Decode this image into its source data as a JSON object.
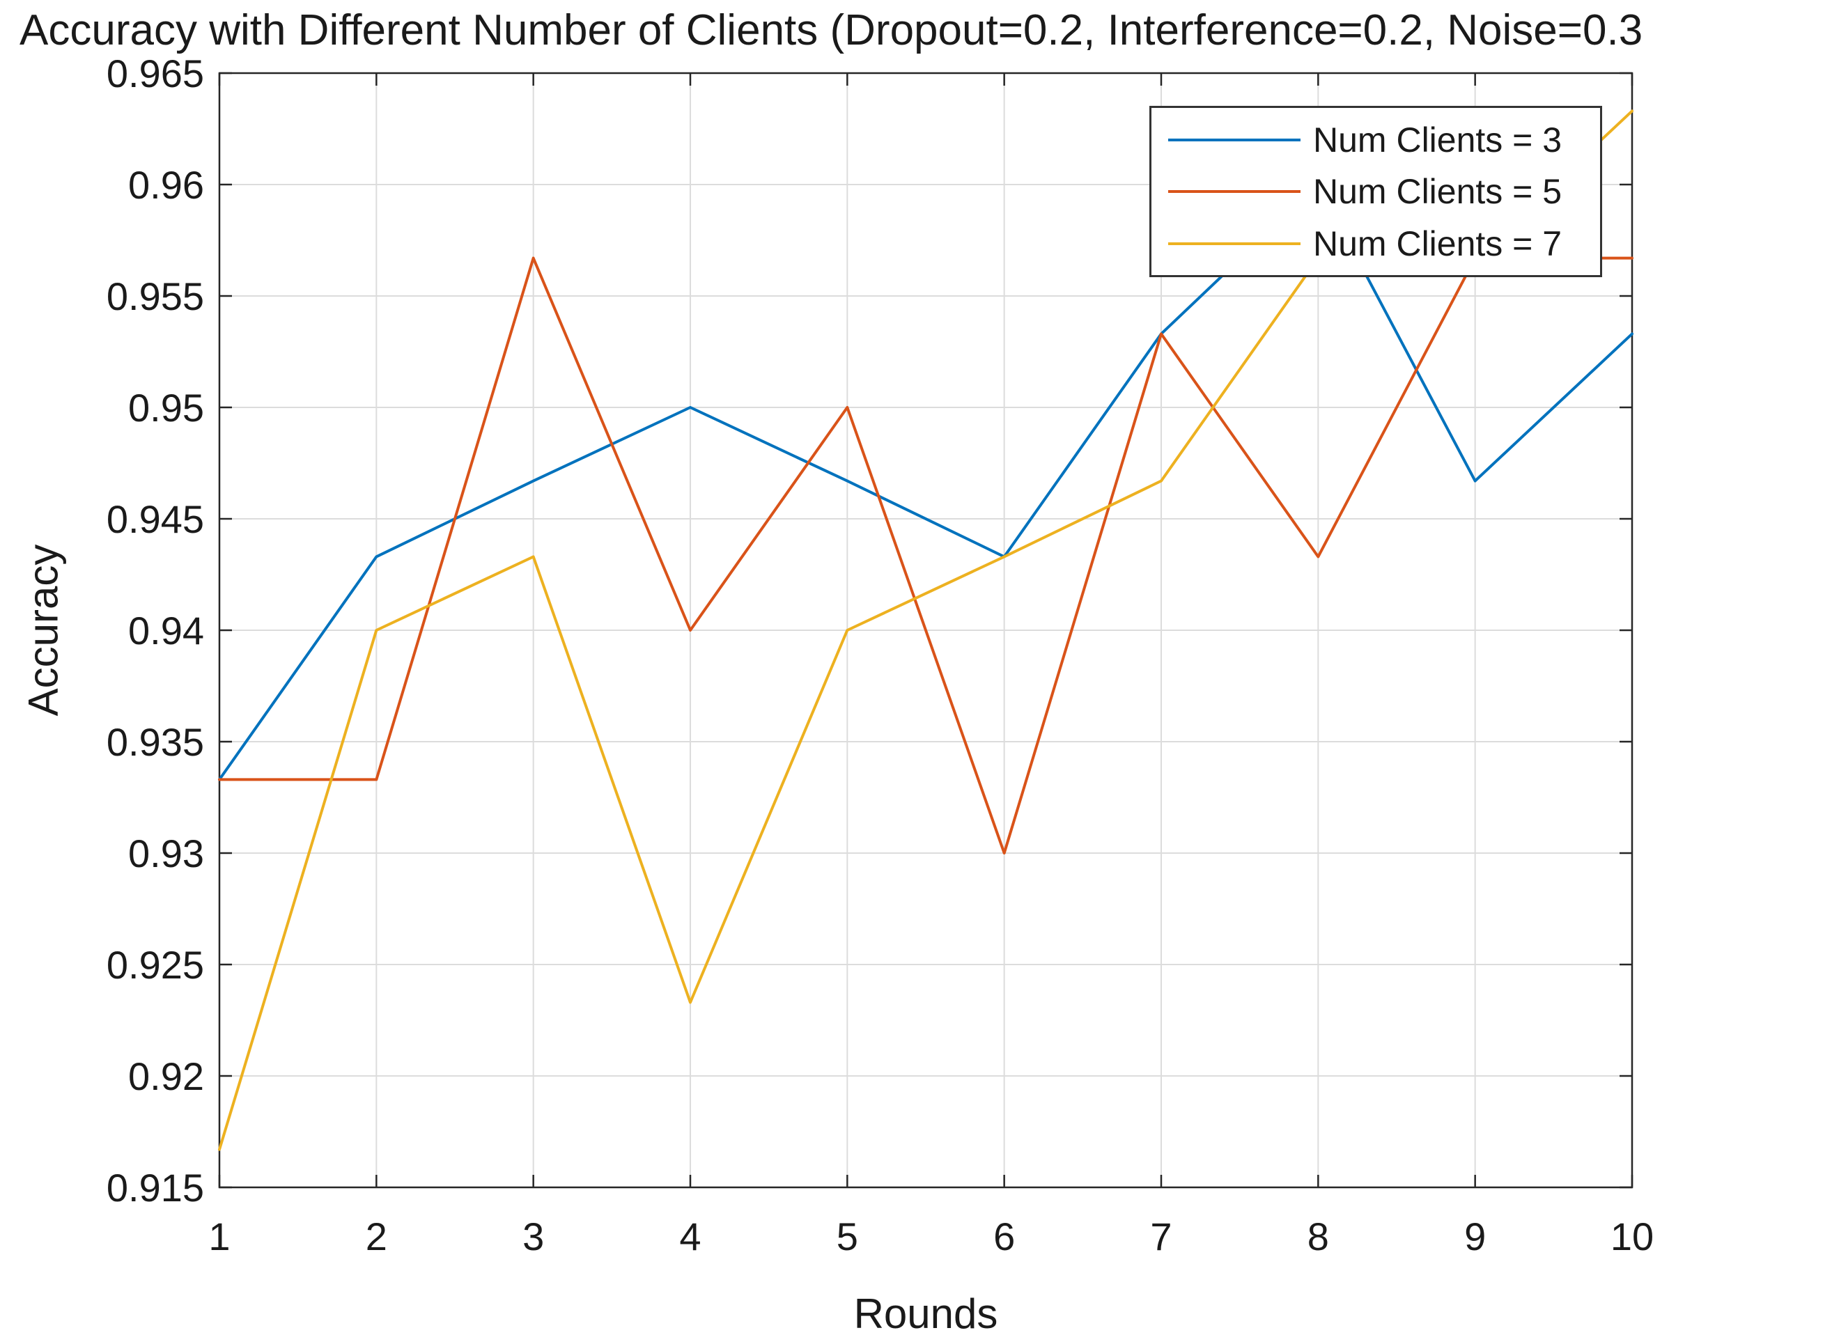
{
  "chart_data": {
    "type": "line",
    "title": "Accuracy with Different Number of Clients (Dropout=0.2, Interference=0.2, Noise=0.3",
    "xlabel": "Rounds",
    "ylabel": "Accuracy",
    "x": [
      1,
      2,
      3,
      4,
      5,
      6,
      7,
      8,
      9,
      10
    ],
    "xlim": [
      1,
      10
    ],
    "ylim": [
      0.915,
      0.965
    ],
    "xticks": [
      1,
      2,
      3,
      4,
      5,
      6,
      7,
      8,
      9,
      10
    ],
    "xtick_labels": [
      "1",
      "2",
      "3",
      "4",
      "5",
      "6",
      "7",
      "8",
      "9",
      "10"
    ],
    "yticks": [
      0.915,
      0.92,
      0.925,
      0.93,
      0.935,
      0.94,
      0.945,
      0.95,
      0.955,
      0.96,
      0.965
    ],
    "ytick_labels": [
      "0.915",
      "0.92",
      "0.925",
      "0.93",
      "0.935",
      "0.94",
      "0.945",
      "0.95",
      "0.955",
      "0.96",
      "0.965"
    ],
    "grid": true,
    "legend_position": "northeast-inside",
    "series": [
      {
        "name": "Num Clients = 3",
        "color": "#0072BD",
        "values": [
          0.9333,
          0.9433,
          0.9467,
          0.95,
          0.9467,
          0.9433,
          0.9533,
          0.96,
          0.9467,
          0.9533
        ]
      },
      {
        "name": "Num Clients = 5",
        "color": "#D95319",
        "values": [
          0.9333,
          0.9333,
          0.9567,
          0.94,
          0.95,
          0.93,
          0.9533,
          0.9433,
          0.9567,
          0.9567
        ]
      },
      {
        "name": "Num Clients = 7",
        "color": "#EDB120",
        "values": [
          0.9167,
          0.94,
          0.9433,
          0.9233,
          0.94,
          0.9433,
          0.9467,
          0.9567,
          0.9567,
          0.9633
        ]
      }
    ],
    "axis_color": "#262626",
    "grid_color": "#dcdcdc",
    "tick_label_color": "#1a1a1a",
    "background": "#ffffff"
  }
}
